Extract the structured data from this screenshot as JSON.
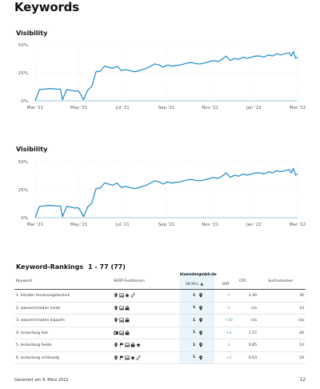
{
  "page": {
    "title": "Keywords",
    "page_number": "12"
  },
  "chart_data": [
    {
      "type": "line",
      "title": "Visibility",
      "color": "#1a88c9",
      "x_ticks": [
        "Mar '21",
        "May '21",
        "Jul '21",
        "Sep '21",
        "Nov '21",
        "Jan '22",
        "Mar '22"
      ],
      "y_ticks": [
        "50%",
        "25%",
        "0%"
      ],
      "ylim": [
        0,
        50
      ],
      "grid": true,
      "x": [
        0,
        2,
        4,
        7,
        10,
        12,
        13,
        15,
        17,
        19,
        20,
        21,
        23,
        25,
        27,
        29,
        31,
        33,
        35,
        37,
        39,
        41,
        43,
        45,
        47,
        49,
        51,
        53,
        55,
        57,
        59,
        61,
        63,
        65,
        67,
        69,
        71,
        73,
        75,
        77,
        79,
        81,
        83,
        85,
        87,
        89,
        91,
        93,
        95,
        97,
        99,
        101,
        103,
        105,
        107,
        109,
        111,
        113,
        115,
        117,
        119,
        121,
        122,
        123,
        124,
        125
      ],
      "values": [
        0,
        10,
        10.5,
        11,
        10.5,
        10.5,
        1,
        10,
        9.5,
        8.5,
        9,
        8,
        1,
        9.5,
        13,
        26,
        26.5,
        31,
        30,
        29,
        31,
        27,
        28,
        27,
        26,
        26.5,
        28,
        29,
        31,
        33,
        32,
        30,
        32,
        31,
        31.5,
        32,
        33,
        34,
        34,
        33,
        33,
        34,
        35,
        36,
        35,
        37,
        40,
        36,
        38,
        37,
        39,
        38,
        39,
        40,
        40,
        39,
        41,
        40,
        42,
        41,
        42,
        43,
        40,
        44,
        38,
        39
      ]
    },
    {
      "type": "line",
      "title": "Visibility",
      "color": "#1a88c9",
      "x_ticks": [
        "Mar '21",
        "May '21",
        "Jul '21",
        "Sep '21",
        "Nov '21",
        "Jan '22",
        "Mar '22"
      ],
      "y_ticks": [
        "50%",
        "25%",
        "0%"
      ],
      "ylim": [
        0,
        50
      ],
      "grid": true,
      "x": [
        0,
        2,
        4,
        7,
        10,
        12,
        13,
        15,
        17,
        19,
        20,
        21,
        23,
        25,
        27,
        29,
        31,
        33,
        35,
        37,
        39,
        41,
        43,
        45,
        47,
        49,
        51,
        53,
        55,
        57,
        59,
        61,
        63,
        65,
        67,
        69,
        71,
        73,
        75,
        77,
        79,
        81,
        83,
        85,
        87,
        89,
        91,
        93,
        95,
        97,
        99,
        101,
        103,
        105,
        107,
        109,
        111,
        113,
        115,
        117,
        119,
        121,
        122,
        123,
        124,
        125
      ],
      "values": [
        0,
        10,
        10.5,
        11,
        10.5,
        10.5,
        1,
        10,
        9.5,
        8.5,
        9,
        8,
        1,
        9.5,
        13,
        26,
        26.5,
        31,
        30,
        29,
        31,
        27,
        28,
        27,
        26,
        26.5,
        28,
        29,
        31,
        33,
        32,
        30,
        32,
        31,
        31.5,
        32,
        33,
        34,
        34,
        33,
        33,
        34,
        35,
        36,
        35,
        37,
        40,
        36,
        38,
        37,
        39,
        38,
        39,
        40,
        40,
        39,
        41,
        40,
        42,
        41,
        42,
        43,
        40,
        44,
        38,
        39
      ]
    }
  ],
  "rankings": {
    "title": "Keyword-Rankings",
    "range": "1 - 77 (77)",
    "headers": {
      "keyword": "Keyword",
      "serp": "SERP-Funktionen",
      "domain": "kluendergmbh.de",
      "date": "08 Mrz. ▲",
      "diff": "Diff.",
      "cpc": "CPC",
      "volume": "Suchvolumen"
    },
    "rows": [
      {
        "keyword": "1. klünder trocknungstechnik",
        "serp": [
          "pin-icon",
          "image-icon",
          "star-icon",
          "link-icon"
        ],
        "position": "1",
        "diff": "0",
        "diff_type": "zero",
        "cpc": "2.40",
        "volume": "30"
      },
      {
        "keyword": "2. wasserschaden heide",
        "serp": [
          "pin-icon",
          "image-icon",
          "shop-icon"
        ],
        "position": "1",
        "diff": "0",
        "diff_type": "zero",
        "cpc": "n/a",
        "volume": "10"
      },
      {
        "keyword": "3. wasserschaden kappeln",
        "serp": [
          "pin-icon",
          "image-icon",
          "shop-icon"
        ],
        "position": "1",
        "diff": "+10",
        "diff_type": "pos",
        "cpc": "n/a",
        "volume": "n/a"
      },
      {
        "keyword": "4. leckortung kiel",
        "serp": [
          "ad-icon",
          "image-icon",
          "shop-icon"
        ],
        "position": "1",
        "diff": "+2",
        "diff_type": "pos",
        "cpc": "1.57",
        "volume": "40"
      },
      {
        "keyword": "5. leckortung heide",
        "serp": [
          "pin-icon",
          "flag-icon",
          "image-icon",
          "shop-icon",
          "star-icon"
        ],
        "position": "1",
        "diff": "0",
        "diff_type": "zero",
        "cpc": "0.85",
        "volume": "10"
      },
      {
        "keyword": "6. leckortung schleswig",
        "serp": [
          "pin-icon",
          "flag-icon",
          "image-icon",
          "star-icon",
          "link-icon"
        ],
        "position": "1",
        "diff": "+1",
        "diff_type": "pos",
        "cpc": "0.63",
        "volume": "10"
      }
    ]
  },
  "footer": {
    "text": "Generiert am 9. März 2022"
  }
}
